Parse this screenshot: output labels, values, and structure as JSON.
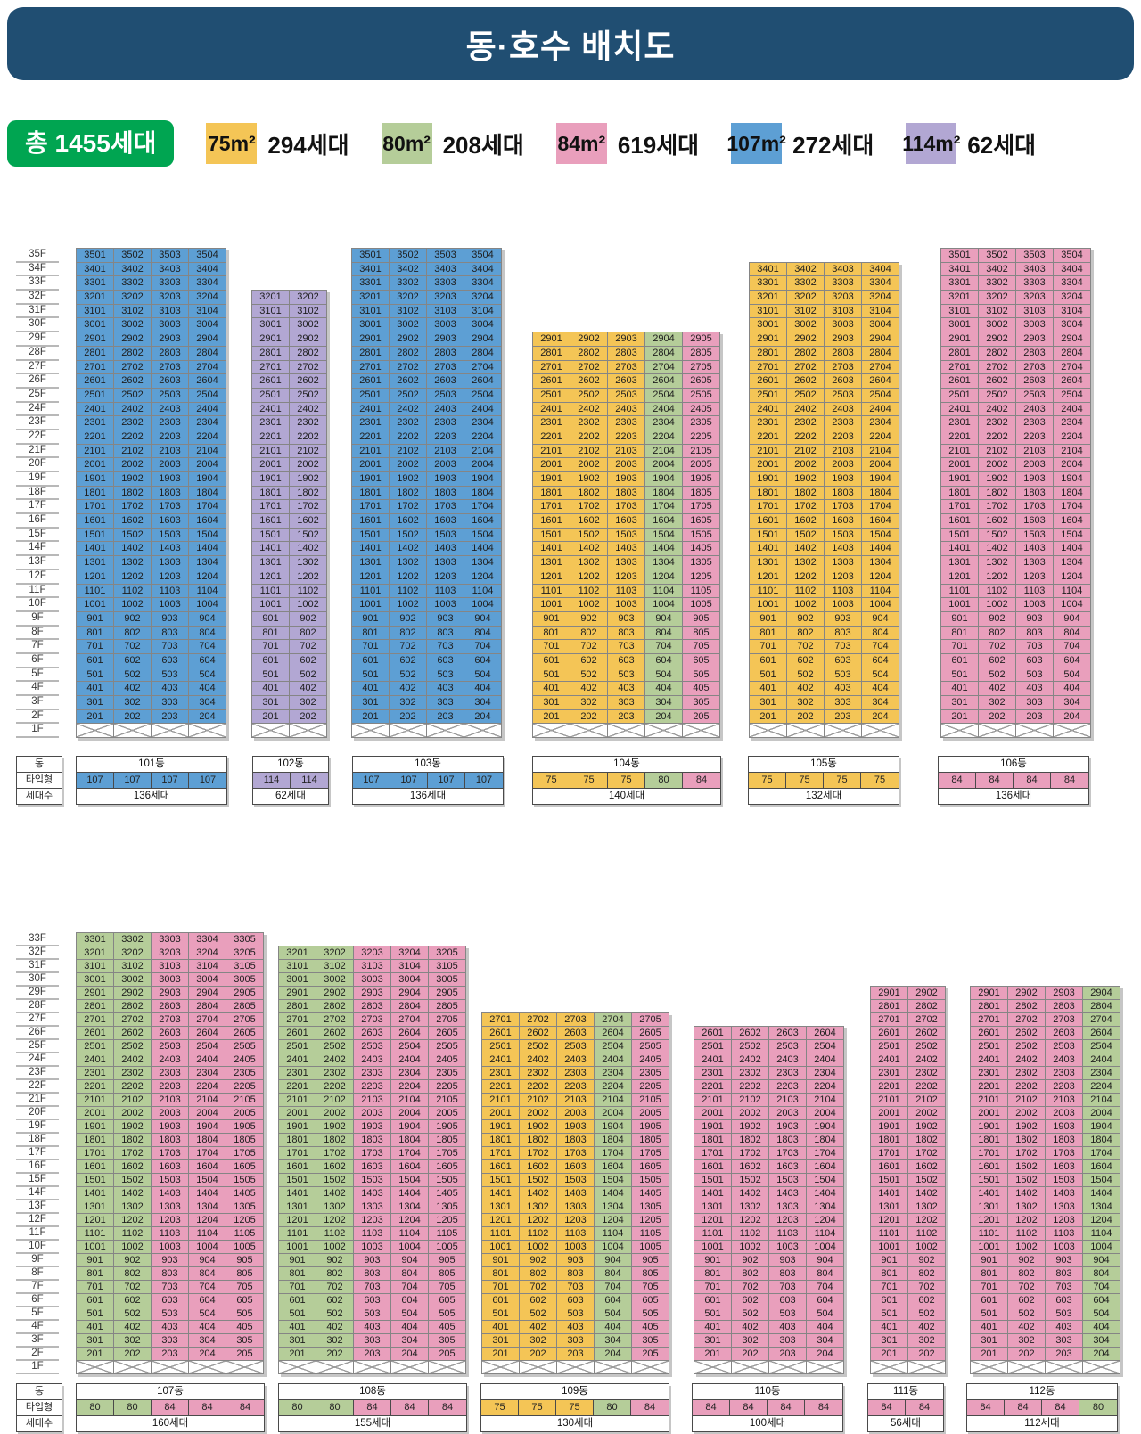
{
  "header": {
    "title": "동·호수 배치도",
    "bg_color": "#204e72"
  },
  "legend": {
    "total": "총 1455세대",
    "total_color": "#00a551",
    "items": [
      {
        "label": "75m²",
        "count": "294세대",
        "type": "75"
      },
      {
        "label": "80m²",
        "count": "208세대",
        "type": "80"
      },
      {
        "label": "84m²",
        "count": "619세대",
        "type": "84"
      },
      {
        "label": "107m²",
        "count": "272세대",
        "type": "107"
      },
      {
        "label": "114m²",
        "count": "62세대",
        "type": "114"
      }
    ]
  },
  "type_colors": {
    "75": "#f4c556",
    "80": "#b5cd99",
    "84": "#e99fbc",
    "107": "#5d9fd4",
    "114": "#b2a7d3"
  },
  "row_labels": {
    "dong": "동",
    "type": "타입형",
    "units": "세대수"
  },
  "floor_suffix": "F",
  "ground_floor": "1F",
  "sections": [
    {
      "top_floor": 35,
      "buildings": [
        {
          "name": "101동",
          "top_floor": 35,
          "types": [
            "107",
            "107",
            "107",
            "107"
          ],
          "households": "136세대"
        },
        {
          "name": "102동",
          "top_floor": 32,
          "types": [
            "114",
            "114"
          ],
          "households": "62세대"
        },
        {
          "name": "103동",
          "top_floor": 35,
          "types": [
            "107",
            "107",
            "107",
            "107"
          ],
          "households": "136세대"
        },
        {
          "name": "104동",
          "top_floor": 29,
          "types": [
            "75",
            "75",
            "75",
            "80",
            "84"
          ],
          "households": "140세대"
        },
        {
          "name": "105동",
          "top_floor": 34,
          "types": [
            "75",
            "75",
            "75",
            "75"
          ],
          "households": "132세대"
        },
        {
          "name": "106동",
          "top_floor": 35,
          "types": [
            "84",
            "84",
            "84",
            "84"
          ],
          "households": "136세대"
        }
      ]
    },
    {
      "top_floor": 33,
      "buildings": [
        {
          "name": "107동",
          "top_floor": 33,
          "types": [
            "80",
            "80",
            "84",
            "84",
            "84"
          ],
          "households": "160세대"
        },
        {
          "name": "108동",
          "top_floor": 32,
          "types": [
            "80",
            "80",
            "84",
            "84",
            "84"
          ],
          "households": "155세대"
        },
        {
          "name": "109동",
          "top_floor": 27,
          "types": [
            "75",
            "75",
            "75",
            "80",
            "84"
          ],
          "households": "130세대"
        },
        {
          "name": "110동",
          "top_floor": 26,
          "types": [
            "84",
            "84",
            "84",
            "84"
          ],
          "households": "100세대"
        },
        {
          "name": "111동",
          "top_floor": 29,
          "types": [
            "84",
            "84"
          ],
          "households": "56세대"
        },
        {
          "name": "112동",
          "top_floor": 29,
          "types": [
            "84",
            "84",
            "84",
            "80"
          ],
          "households": "112세대"
        }
      ]
    }
  ]
}
